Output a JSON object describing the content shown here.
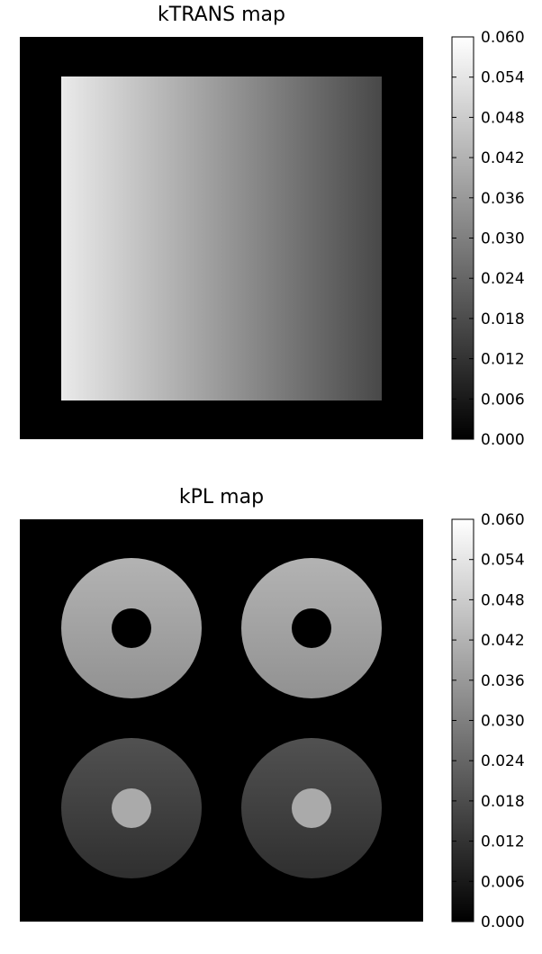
{
  "chart_data": [
    {
      "type": "heatmap",
      "title": "kTRANS map",
      "colormap": "gray",
      "background_value": 0.0,
      "shape": "square",
      "gradient": {
        "direction": "left-to-right",
        "start_value": 0.055,
        "end_value": 0.017
      },
      "colorbar": {
        "vmin": 0.0,
        "vmax": 0.06,
        "ticks": [
          "0.000",
          "0.006",
          "0.012",
          "0.018",
          "0.024",
          "0.030",
          "0.036",
          "0.042",
          "0.048",
          "0.054",
          "0.060"
        ]
      }
    },
    {
      "type": "heatmap",
      "title": "kPL map",
      "colormap": "gray",
      "background_value": 0.0,
      "shape": "rings",
      "rings": [
        {
          "position": "top-left",
          "ring_value_top": 0.042,
          "ring_value_bottom": 0.034,
          "core_value": 0.0
        },
        {
          "position": "top-right",
          "ring_value_top": 0.042,
          "ring_value_bottom": 0.034,
          "core_value": 0.0
        },
        {
          "position": "bottom-left",
          "ring_value_top": 0.019,
          "ring_value_bottom": 0.011,
          "core_value": 0.04
        },
        {
          "position": "bottom-right",
          "ring_value_top": 0.019,
          "ring_value_bottom": 0.011,
          "core_value": 0.04
        }
      ],
      "colorbar": {
        "vmin": 0.0,
        "vmax": 0.06,
        "ticks": [
          "0.000",
          "0.006",
          "0.012",
          "0.018",
          "0.024",
          "0.030",
          "0.036",
          "0.042",
          "0.048",
          "0.054",
          "0.060"
        ]
      }
    }
  ]
}
